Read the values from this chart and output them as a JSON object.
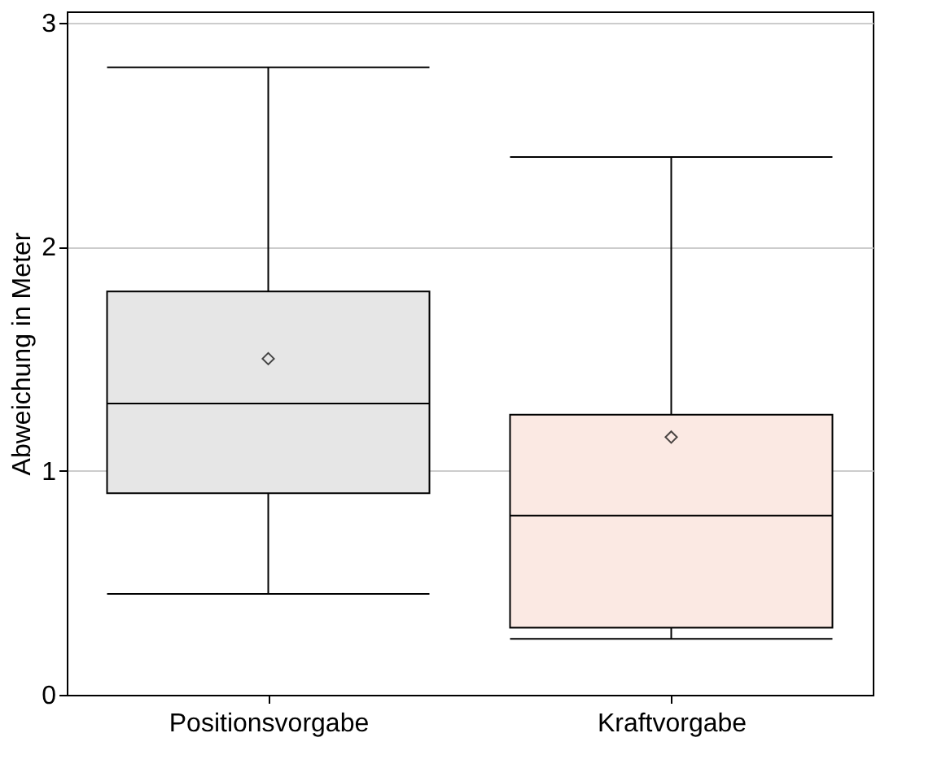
{
  "chart_data": {
    "type": "box",
    "ylabel": "Abweichung in Meter",
    "categories": [
      "Positionsvorgabe",
      "Kraftvorgabe"
    ],
    "boxes": [
      {
        "low": 0.45,
        "q1": 0.9,
        "median": 1.3,
        "q3": 1.8,
        "high": 2.8,
        "mean": 1.5
      },
      {
        "low": 0.25,
        "q1": 0.3,
        "median": 0.8,
        "q3": 1.25,
        "high": 2.4,
        "mean": 1.15
      }
    ],
    "colors": [
      "#e6e6e6",
      "#fbe9e3"
    ],
    "ylim": [
      0,
      3.05
    ],
    "yticks": [
      0,
      1,
      2,
      3
    ],
    "grid": "y",
    "marker": "diamond"
  }
}
